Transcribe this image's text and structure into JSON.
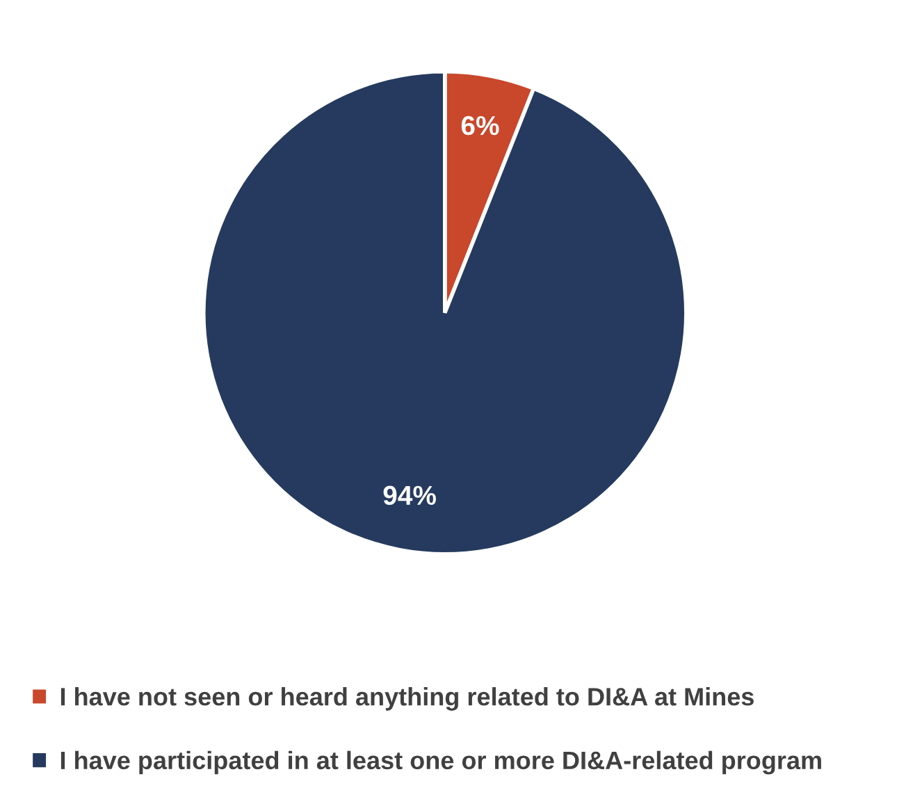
{
  "chart_data": {
    "type": "pie",
    "categories": [
      "I have not seen or heard anything related to DI&A at Mines",
      "I have participated in at least one or more DI&A-related program"
    ],
    "values": [
      6,
      94
    ],
    "colors": [
      "#c9472b",
      "#253a5e"
    ],
    "value_labels": [
      "6%",
      "94%"
    ],
    "legend": "bottom"
  }
}
